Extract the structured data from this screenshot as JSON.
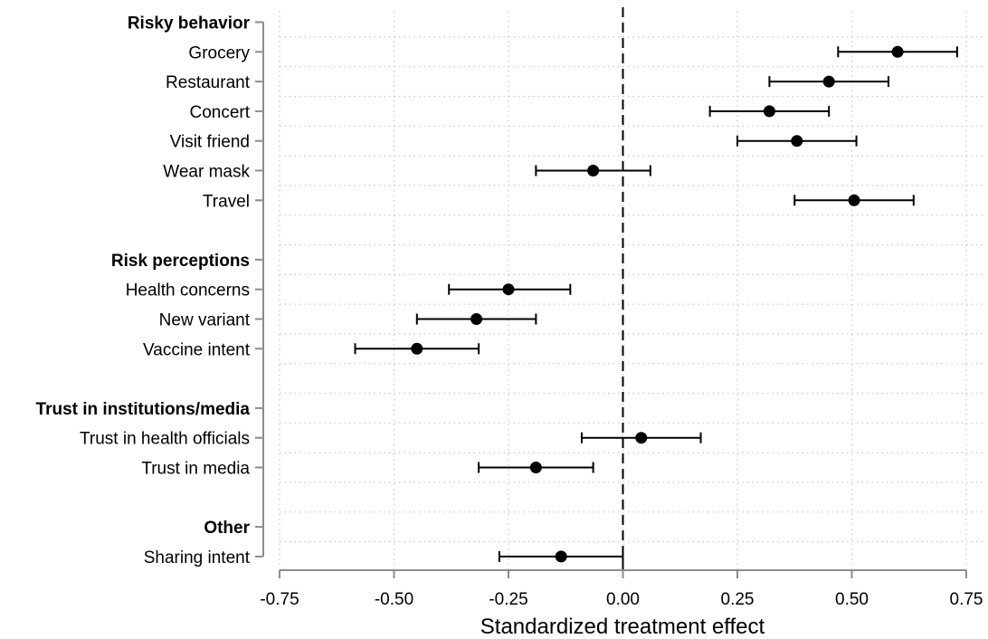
{
  "chart_data": {
    "type": "scatter",
    "subtype": "coefficient-plot",
    "title": "",
    "xlabel": "Standardized treatment effect",
    "ylabel": "",
    "xlim": [
      -0.75,
      0.75
    ],
    "x_ticks": [
      -0.75,
      -0.5,
      -0.25,
      0.0,
      0.25,
      0.5,
      0.75
    ],
    "x_tick_labels": [
      "-0.75",
      "-0.50",
      "-0.25",
      "0.00",
      "0.25",
      "0.50",
      "0.75"
    ],
    "reference_line": 0,
    "grid": true,
    "groups": [
      {
        "name": "Risky behavior",
        "items": [
          {
            "label": "Grocery",
            "estimate": 0.6,
            "ci_low": 0.47,
            "ci_high": 0.73
          },
          {
            "label": "Restaurant",
            "estimate": 0.45,
            "ci_low": 0.32,
            "ci_high": 0.58
          },
          {
            "label": "Concert",
            "estimate": 0.32,
            "ci_low": 0.19,
            "ci_high": 0.45
          },
          {
            "label": "Visit friend",
            "estimate": 0.38,
            "ci_low": 0.25,
            "ci_high": 0.51
          },
          {
            "label": "Wear mask",
            "estimate": -0.065,
            "ci_low": -0.19,
            "ci_high": 0.06
          },
          {
            "label": "Travel",
            "estimate": 0.505,
            "ci_low": 0.375,
            "ci_high": 0.635
          }
        ]
      },
      {
        "name": "Risk perceptions",
        "items": [
          {
            "label": "Health concerns",
            "estimate": -0.25,
            "ci_low": -0.38,
            "ci_high": -0.115
          },
          {
            "label": "New variant",
            "estimate": -0.32,
            "ci_low": -0.45,
            "ci_high": -0.19
          },
          {
            "label": "Vaccine intent",
            "estimate": -0.45,
            "ci_low": -0.585,
            "ci_high": -0.315
          }
        ]
      },
      {
        "name": "Trust in institutions/media",
        "items": [
          {
            "label": "Trust in health officials",
            "estimate": 0.04,
            "ci_low": -0.09,
            "ci_high": 0.17
          },
          {
            "label": "Trust in media",
            "estimate": -0.19,
            "ci_low": -0.315,
            "ci_high": -0.065
          }
        ]
      },
      {
        "name": "Other",
        "items": [
          {
            "label": "Sharing intent",
            "estimate": -0.135,
            "ci_low": -0.27,
            "ci_high": 0.0
          }
        ]
      }
    ]
  }
}
